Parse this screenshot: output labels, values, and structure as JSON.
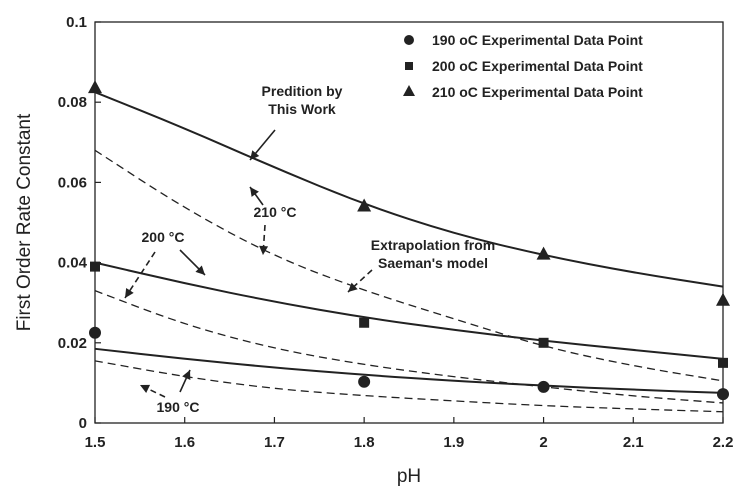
{
  "chart_data": {
    "type": "scatter",
    "xlabel": "pH",
    "ylabel": "First Order Rate Constant",
    "xlim": [
      1.5,
      2.2
    ],
    "ylim": [
      0,
      0.1
    ],
    "x_ticks": [
      "1.5",
      "1.6",
      "1.7",
      "1.8",
      "1.9",
      "2",
      "2.1",
      "2.2"
    ],
    "y_ticks": [
      "0",
      "0.02",
      "0.04",
      "0.06",
      "0.08",
      "0.1"
    ],
    "grid": false,
    "legend_position": "top-right",
    "series": [
      {
        "name": "190 oC Experimental Data Point",
        "marker": "circle",
        "points": [
          [
            1.5,
            0.0225
          ],
          [
            1.8,
            0.0103
          ],
          [
            2.0,
            0.009
          ],
          [
            2.2,
            0.0072
          ]
        ]
      },
      {
        "name": "200 oC Experimental Data Point",
        "marker": "square",
        "points": [
          [
            1.5,
            0.039
          ],
          [
            1.8,
            0.025
          ],
          [
            2.0,
            0.02
          ],
          [
            2.2,
            0.015
          ]
        ]
      },
      {
        "name": "210 oC Experimental Data Point",
        "marker": "triangle",
        "points": [
          [
            1.5,
            0.0835
          ],
          [
            1.8,
            0.054
          ],
          [
            2.0,
            0.042
          ],
          [
            2.2,
            0.0305
          ]
        ]
      }
    ],
    "curves": [
      {
        "style": "solid",
        "points": [
          [
            1.5,
            0.0825
          ],
          [
            1.6,
            0.0735
          ],
          [
            1.7,
            0.0637
          ],
          [
            1.8,
            0.0545
          ],
          [
            1.9,
            0.0472
          ],
          [
            2.0,
            0.0418
          ],
          [
            2.1,
            0.0375
          ],
          [
            2.2,
            0.034
          ]
        ]
      },
      {
        "style": "solid",
        "points": [
          [
            1.5,
            0.04
          ],
          [
            1.6,
            0.0348
          ],
          [
            1.7,
            0.0302
          ],
          [
            1.8,
            0.0263
          ],
          [
            1.9,
            0.0232
          ],
          [
            2.0,
            0.0205
          ],
          [
            2.1,
            0.0182
          ],
          [
            2.2,
            0.016
          ]
        ]
      },
      {
        "style": "solid",
        "points": [
          [
            1.5,
            0.0185
          ],
          [
            1.6,
            0.016
          ],
          [
            1.7,
            0.0138
          ],
          [
            1.8,
            0.012
          ],
          [
            1.9,
            0.0105
          ],
          [
            2.0,
            0.0093
          ],
          [
            2.1,
            0.0083
          ],
          [
            2.2,
            0.0075
          ]
        ]
      },
      {
        "style": "dashed",
        "points": [
          [
            1.5,
            0.068
          ],
          [
            1.6,
            0.0535
          ],
          [
            1.7,
            0.0415
          ],
          [
            1.8,
            0.033
          ],
          [
            1.9,
            0.026
          ],
          [
            2.0,
            0.019
          ],
          [
            2.1,
            0.0142
          ],
          [
            2.2,
            0.0105
          ]
        ]
      },
      {
        "style": "dashed",
        "points": [
          [
            1.5,
            0.033
          ],
          [
            1.6,
            0.0245
          ],
          [
            1.7,
            0.0185
          ],
          [
            1.8,
            0.0145
          ],
          [
            1.9,
            0.0115
          ],
          [
            2.0,
            0.009
          ],
          [
            2.1,
            0.0067
          ],
          [
            2.2,
            0.005
          ]
        ]
      },
      {
        "style": "dashed",
        "points": [
          [
            1.5,
            0.0155
          ],
          [
            1.6,
            0.0115
          ],
          [
            1.7,
            0.0085
          ],
          [
            1.8,
            0.0068
          ],
          [
            1.9,
            0.0055
          ],
          [
            2.0,
            0.0043
          ],
          [
            2.1,
            0.0035
          ],
          [
            2.2,
            0.0028
          ]
        ]
      }
    ],
    "annotations": [
      {
        "name": "prediction",
        "lines": [
          "Predition by",
          "This Work"
        ]
      },
      {
        "name": "temp-210",
        "lines": [
          "210 °C"
        ]
      },
      {
        "name": "temp-200",
        "lines": [
          "200 °C"
        ]
      },
      {
        "name": "extrapolation",
        "lines": [
          "Extrapolation from",
          "Saeman's model"
        ]
      },
      {
        "name": "temp-190",
        "lines": [
          "190 °C"
        ]
      }
    ]
  }
}
